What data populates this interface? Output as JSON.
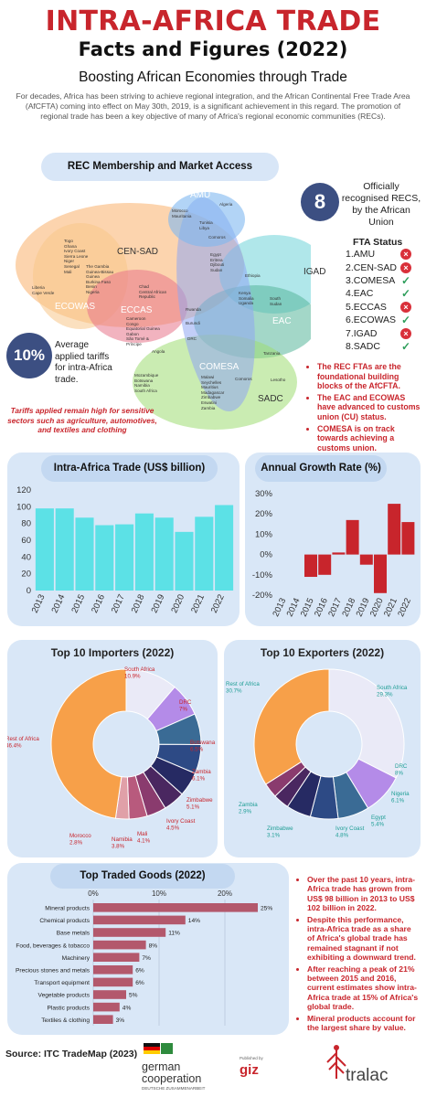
{
  "header": {
    "title": "INTRA-AFRICA TRADE",
    "subtitle": "Facts and Figures (2022)",
    "tagline": "Boosting African Economies through Trade",
    "intro": "For decades, Africa has been striving to achieve regional integration, and the African Continental Free Trade Area (AfCFTA) coming into effect on May 30th, 2019, is a significant achievement in this regard. The promotion of regional trade has been a key objective of many of Africa's regional economic communities (RECs)."
  },
  "rec_section": {
    "title": "REC Membership and Market Access",
    "recs_count": "8",
    "recs_text": "Officially recognised RECS, by the African Union",
    "fta_title": "FTA Status",
    "fta": [
      {
        "label": "1.AMU",
        "status": "x"
      },
      {
        "label": "2.CEN-SAD",
        "status": "x"
      },
      {
        "label": "3.COMESA",
        "status": "check"
      },
      {
        "label": "4.EAC",
        "status": "check"
      },
      {
        "label": "5.ECCAS",
        "status": "x"
      },
      {
        "label": "6.ECOWAS",
        "status": "check"
      },
      {
        "label": "7.IGAD",
        "status": "x"
      },
      {
        "label": "8.SADC",
        "status": "check"
      }
    ],
    "tariff_value": "10%",
    "tariff_text": "Average applied tariffs for intra-Africa trade.",
    "tariff_note": "Tariffs applied remain high for sensitive sectors such as agriculture, automotives, and textiles and clothing",
    "bullets": [
      "The REC FTAs are the foundational building blocks of the AfCFTA.",
      "The EAC and ECOWAS have advanced to customs union (CU) status.",
      "COMESA is on track towards achieving a customs union."
    ],
    "venn": {
      "labels": {
        "amu": "AMU",
        "censad": "CEN-SAD",
        "ecowas": "ECOWAS",
        "eccas": "ECCAS",
        "igad": "IGAD",
        "eac": "EAC",
        "comesa": "COMESA",
        "sadc": "SADC"
      },
      "countries": {
        "algeria": "Algeria",
        "amu_censad": "Morocco\nMauritania",
        "tunisia": "Tunisia\nLibya",
        "comoros": "Comoros",
        "egypt_group": "Egypt\nEritrea\nDjibouti\nSudan",
        "ethiopia": "Ethiopia",
        "censad_list": "Togo\nGhana\nIvory Coast\nSierra Leone\nNiger\nSenegal\nMali",
        "gambia_list": "The Gambia\nGuinea-Bissau\nGuinea\nBurkina Faso\nBenin\nNigeria",
        "liberia": "Liberia\nCape Verde",
        "chad": "Chad\nCentral African\nRepublic",
        "eccas_list": "Cameroon\nCongo\nEquatorial Guinea\nGabon\nSão Tomé &\nPríncipe",
        "kenya": "Kenya\nSomalia\nUganda",
        "south_sudan": "South\nSudan",
        "rwanda": "Rwanda",
        "burundi": "Burundi",
        "drc": "DRC",
        "angola": "Angola",
        "tanzania": "Tanzania",
        "sadc_list": "Mozambique\nBotswana\nNamibia\nSouth Africa",
        "comesa_list": "Malawi\nSeychelles\nMauritius\nMadagascar\nZimbabwe\nEswatini\nZambia",
        "comoros2": "Comoros",
        "lesotho": "Lesotho"
      }
    }
  },
  "chart_data": [
    {
      "type": "bar",
      "title": "Intra-Africa Trade (US$ billion)",
      "categories": [
        "2013",
        "2014",
        "2015",
        "2016",
        "2017",
        "2018",
        "2019",
        "2020",
        "2021",
        "2022"
      ],
      "values": [
        98,
        98,
        87,
        78,
        79,
        92,
        87,
        70,
        88,
        102
      ],
      "ylim": [
        0,
        120
      ],
      "yticks": [
        "0",
        "20",
        "40",
        "60",
        "80",
        "100",
        "120"
      ],
      "grid": false,
      "color": "#5ce1e6"
    },
    {
      "type": "bar",
      "title": "Annual Growth Rate (%)",
      "categories": [
        "2013",
        "2014",
        "2015",
        "2016",
        "2017",
        "2018",
        "2019",
        "2020",
        "2021",
        "2022"
      ],
      "values": [
        0,
        0,
        -11,
        -10,
        1,
        17,
        -5,
        -19,
        25,
        16
      ],
      "ylim": [
        -20,
        30
      ],
      "yticks": [
        "30%",
        "20%",
        "10%",
        "0%",
        "-10%",
        "-20%"
      ],
      "grid": false,
      "color": "#c8252c"
    },
    {
      "type": "pie",
      "title": "Top 10 Importers (2022)",
      "labels": [
        "South Africa",
        "DRC",
        "Botswana",
        "Zambia",
        "Zimbabwe",
        "Ivory Coast",
        "Mali",
        "Namibia",
        "Morocco",
        "Rest of Africa"
      ],
      "values": [
        10.9,
        7,
        6.5,
        6.1,
        5.1,
        4.5,
        4.1,
        3.8,
        2.8,
        46.4
      ],
      "value_labels": [
        "10.9%",
        "7%",
        "6.5%",
        "6.1%",
        "5.1%",
        "4.5%",
        "4.1%",
        "3.8%",
        "2.8%",
        "46.4%"
      ],
      "colors": [
        "#eaeaf7",
        "#b48be8",
        "#3a6b95",
        "#2d4a85",
        "#262a63",
        "#4a2760",
        "#8a3b6e",
        "#b85a7d",
        "#e0a0a8",
        "#f7a049"
      ],
      "label_color": "#c8252c"
    },
    {
      "type": "pie",
      "title": "Top 10 Exporters (2022)",
      "labels": [
        "South Africa",
        "DRC",
        "Nigeria",
        "Egypt",
        "Ivory Coast",
        "Zimbabwe",
        "Zambia",
        "Rest of Africa"
      ],
      "values": [
        29.3,
        8,
        6.1,
        5.4,
        4.8,
        3.1,
        2.9,
        30.7
      ],
      "value_labels": [
        "29.3%",
        "8%",
        "6.1%",
        "5.4%",
        "4.8%",
        "3.1%",
        "2.9%",
        "30.7%"
      ],
      "colors": [
        "#eaeaf7",
        "#b48be8",
        "#3a6b95",
        "#2d4a85",
        "#262a63",
        "#4a2760",
        "#8a3b6e",
        "#f7a049"
      ],
      "label_color": "#1f9e95"
    },
    {
      "type": "bar",
      "orientation": "horizontal",
      "title": "Top Traded Goods (2022)",
      "categories": [
        "Mineral products",
        "Chemical products",
        "Base metals",
        "Food, beverages & tobacco",
        "Machinery",
        "Precious stones and metals",
        "Transport equipment",
        "Vegetable products",
        "Plastic products",
        "Textiles & clothing"
      ],
      "values": [
        25,
        14,
        11,
        8,
        7,
        6,
        6,
        5,
        4,
        3
      ],
      "value_labels": [
        "25%",
        "14%",
        "11%",
        "8%",
        "7%",
        "6%",
        "6%",
        "5%",
        "4%",
        "3%"
      ],
      "xticks": [
        "0%",
        "10%",
        "20%"
      ],
      "xlim": [
        0,
        25
      ],
      "grid": true,
      "color": "#b3586c"
    }
  ],
  "goods_bullets": [
    "Over the past 10 years, intra-Africa trade has grown from US$ 98 billion in 2013 to US$ 102 billion in 2022.",
    "Despite this performance, intra-Africa trade as a share of Africa's global trade has remained stagnant if not exhibiting a downward trend.",
    "After reaching a peak of 21% between 2015 and 2016, current estimates show intra-Africa trade at 15% of Africa's global trade.",
    "Mineral products account for the largest share by value."
  ],
  "footer": {
    "source": "Source: ITC TradeMap (2023)",
    "giz_line1": "german",
    "giz_line2": "cooperation",
    "giz_line3": "DEUTSCHE ZUSAMMENARBEIT",
    "published_by": "Published by",
    "giz": "giz",
    "tralac": "tralac"
  },
  "colors": {
    "accent_red": "#c8252c",
    "panel_blue": "#d9e7f7",
    "navy": "#3c4f82",
    "cyan_bar": "#5ce1e6"
  }
}
